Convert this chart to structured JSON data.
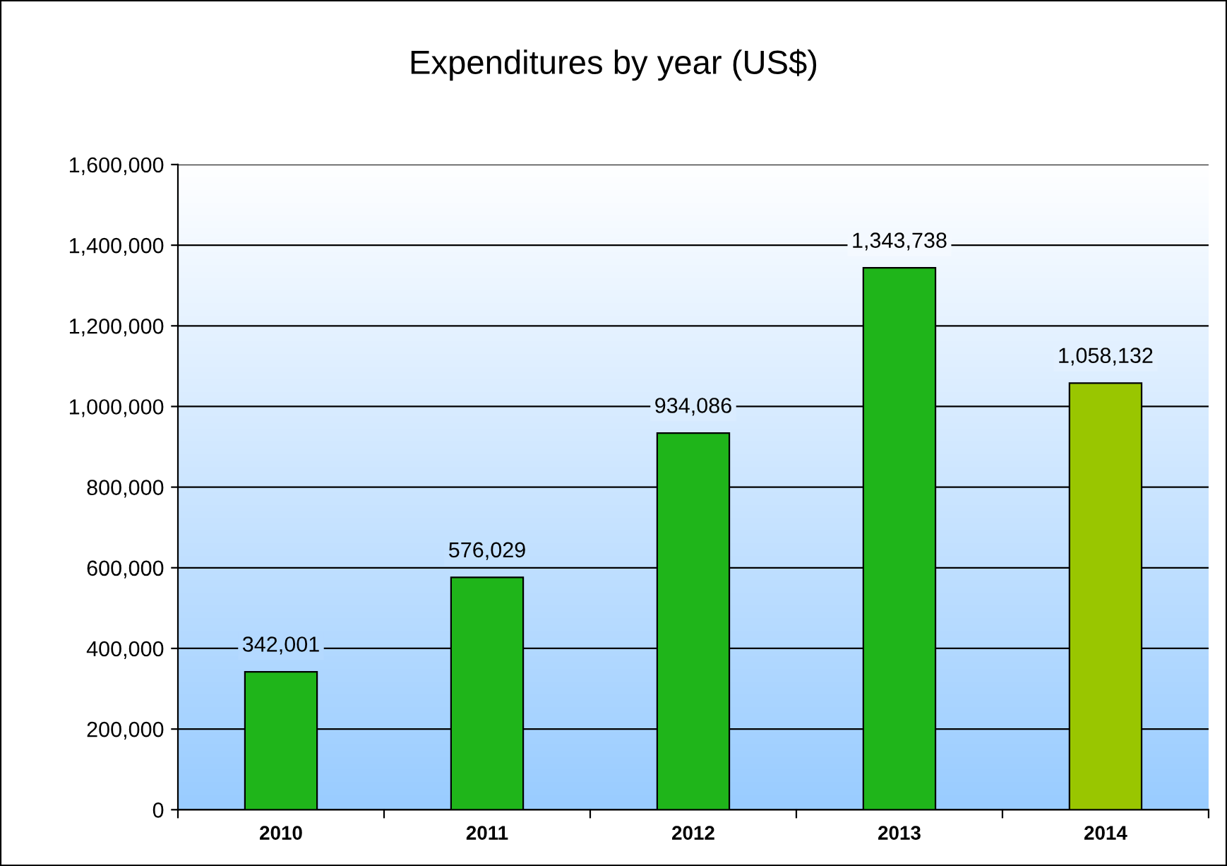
{
  "chart_data": {
    "type": "bar",
    "title": "Expenditures by year (US$)",
    "categories": [
      "2010",
      "2011",
      "2012",
      "2013",
      "2014"
    ],
    "values": [
      342001,
      576029,
      934086,
      1343738,
      1058132
    ],
    "colors": [
      "#1fb51a",
      "#1fb51a",
      "#1fb51a",
      "#1fb51a",
      "#99c600"
    ],
    "value_labels": [
      "342,001",
      "576,029",
      "934,086",
      "1,343,738",
      "1,058,132"
    ],
    "ylim": [
      0,
      1600000
    ],
    "yticks": [
      0,
      {
        "value": 200000,
        "label": "200,000"
      },
      {
        "value": 400000,
        "label": "400,000"
      },
      {
        "value": 600000,
        "label": "600,000"
      },
      {
        "value": 800000,
        "label": "800,000"
      },
      {
        "value": 1000000,
        "label": "1,000,000"
      },
      {
        "value": 1200000,
        "label": "1,200,000"
      },
      {
        "value": 1400000,
        "label": "1,400,000"
      },
      {
        "value": 1600000,
        "label": "1,600,000"
      }
    ],
    "grid": "y",
    "legend": false
  }
}
